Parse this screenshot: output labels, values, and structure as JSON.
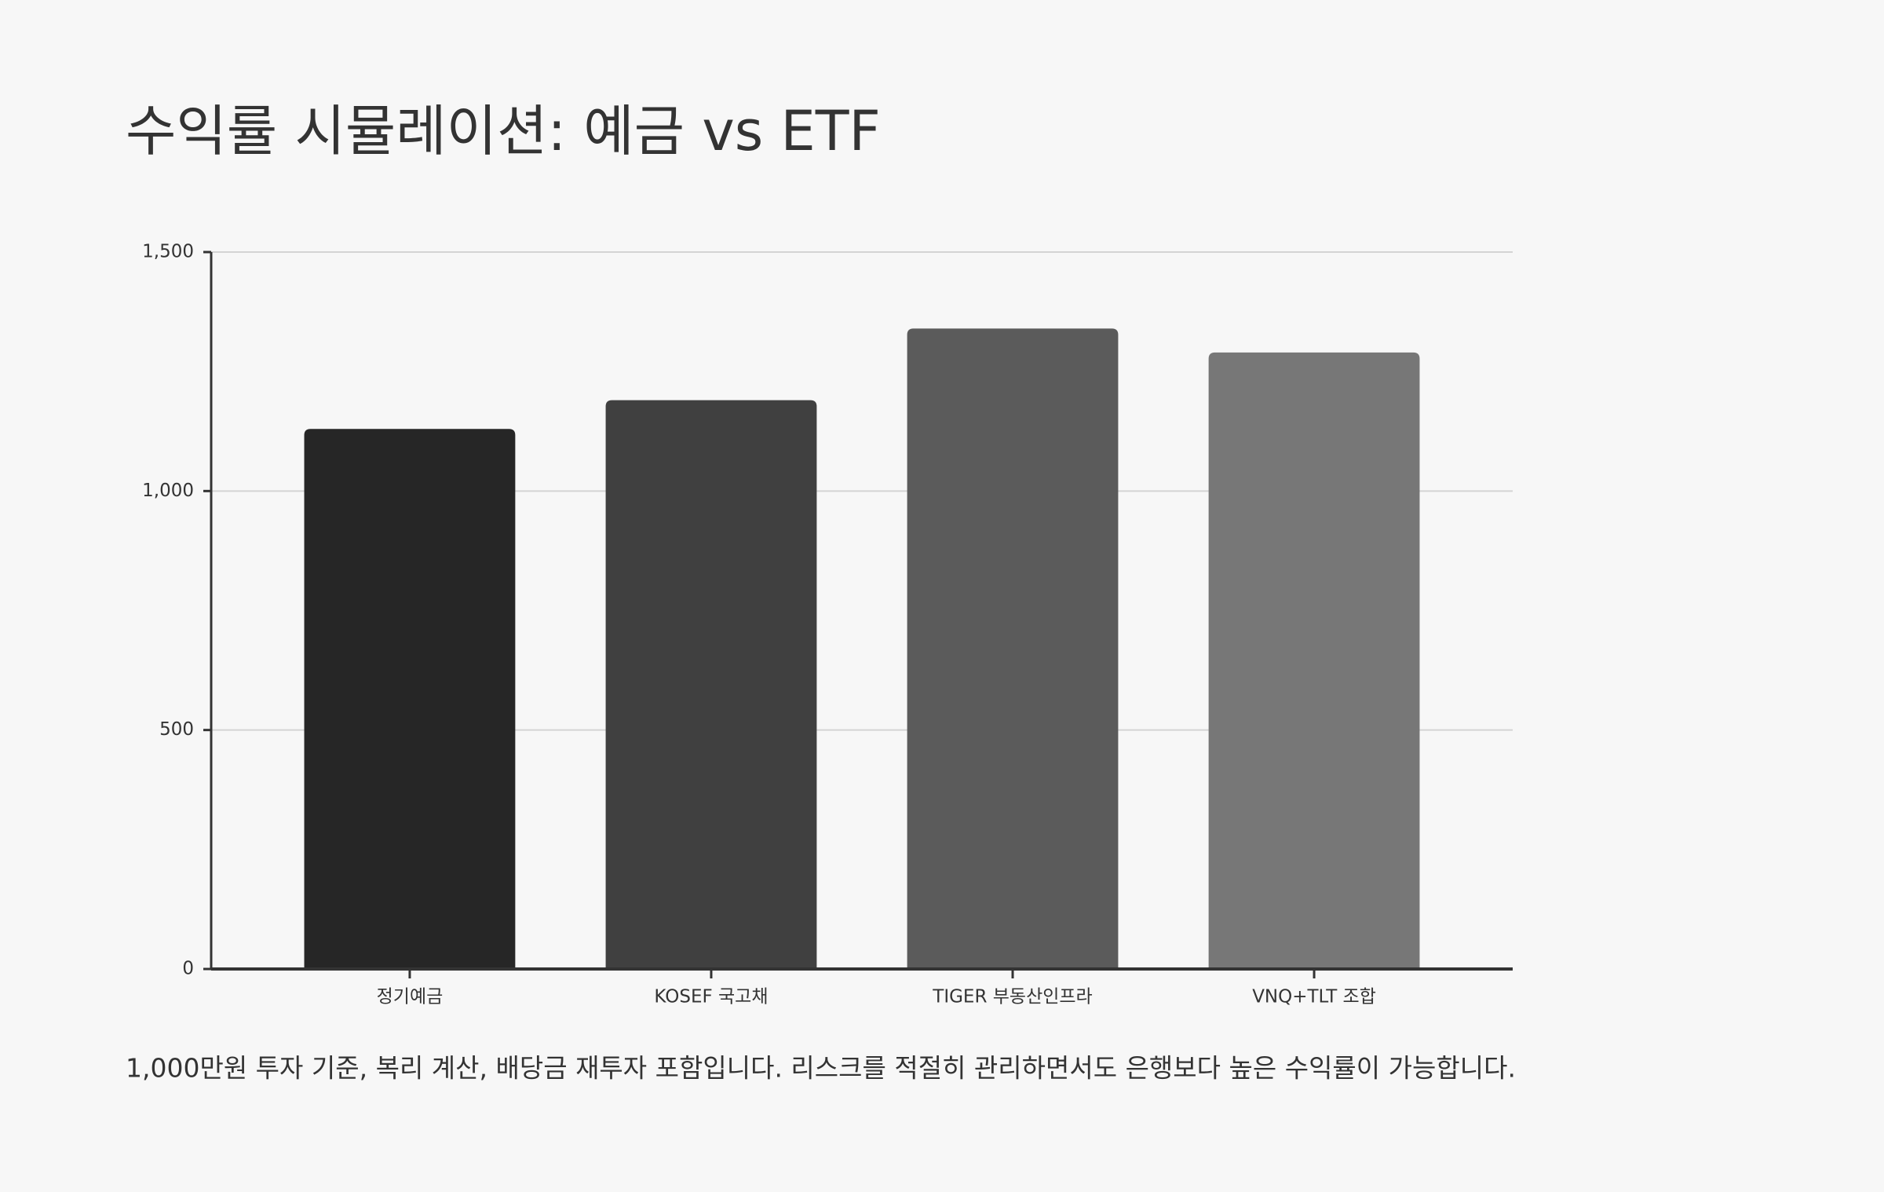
{
  "chart_data": {
    "type": "bar",
    "title": "수익률 시뮬레이션: 예금 vs ETF",
    "categories": [
      "정기예금",
      "KOSEF 국고채",
      "TIGER 부동산인프라",
      "VNQ+TLT 조합"
    ],
    "values": [
      1130,
      1190,
      1340,
      1290
    ],
    "colors": [
      "#262626",
      "#404040",
      "#5b5b5b",
      "#777777"
    ],
    "ylim": [
      0,
      1500
    ],
    "yticks": [
      0,
      500,
      {
        "value": 1000,
        "label": "1,000"
      },
      {
        "value": 1500,
        "label": "1,500"
      }
    ],
    "grid": true,
    "caption": "1,000만원 투자 기준, 복리 계산, 배당금 재투자 포함입니다. 리스크를 적절히 관리하면서도 은행보다 높은 수익률이 가능합니다."
  }
}
